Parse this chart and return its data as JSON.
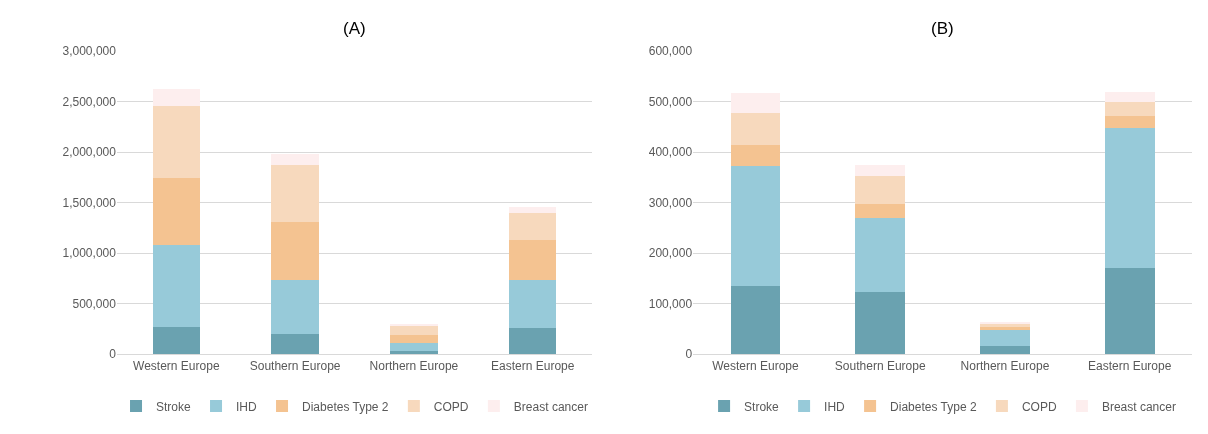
{
  "chart_data": [
    {
      "type": "bar",
      "title": "(A)",
      "stacked": true,
      "categories": [
        "Western Europe",
        "Southern Europe",
        "Northern Europe",
        "Eastern Europe"
      ],
      "series": [
        {
          "name": "Stroke",
          "color": "#6aa2b0",
          "values": [
            270000,
            200000,
            30000,
            260000
          ]
        },
        {
          "name": "IHD",
          "color": "#97cad9",
          "values": [
            810000,
            530000,
            80000,
            470000
          ]
        },
        {
          "name": "Diabetes Type 2",
          "color": "#f4c391",
          "values": [
            660000,
            580000,
            80000,
            400000
          ]
        },
        {
          "name": "COPD",
          "color": "#f7d9bd",
          "values": [
            720000,
            560000,
            90000,
            270000
          ]
        },
        {
          "name": "Breast cancer",
          "color": "#fdeeee",
          "values": [
            170000,
            110000,
            20000,
            60000
          ]
        }
      ],
      "ylim": [
        0,
        3000000
      ],
      "yticks": [
        0,
        {
          "value": 500000,
          "label": "500,000"
        },
        {
          "value": 1000000,
          "label": "1,000,000"
        },
        {
          "value": 1500000,
          "label": "1,500,000"
        },
        {
          "value": 2000000,
          "label": "2,000,000"
        },
        {
          "value": 2500000,
          "label": "2,500,000"
        },
        {
          "value": 3000000,
          "label": "3,000,000"
        }
      ],
      "grid": "y",
      "legend": "bottom"
    },
    {
      "type": "bar",
      "title": "(B)",
      "stacked": true,
      "categories": [
        "Western Europe",
        "Southern Europe",
        "Northern Europe",
        "Eastern Europe"
      ],
      "series": [
        {
          "name": "Stroke",
          "color": "#6aa2b0",
          "values": [
            135000,
            124000,
            16000,
            170000
          ]
        },
        {
          "name": "IHD",
          "color": "#97cad9",
          "values": [
            237000,
            145000,
            32000,
            278000
          ]
        },
        {
          "name": "Diabetes Type 2",
          "color": "#f4c391",
          "values": [
            43000,
            29000,
            5000,
            23000
          ]
        },
        {
          "name": "COPD",
          "color": "#f7d9bd",
          "values": [
            62000,
            54000,
            8000,
            28000
          ]
        },
        {
          "name": "Breast cancer",
          "color": "#fdeeee",
          "values": [
            40000,
            23000,
            2000,
            21000
          ]
        }
      ],
      "ylim": [
        0,
        600000
      ],
      "yticks": [
        0,
        {
          "value": 100000,
          "label": "100,000"
        },
        {
          "value": 200000,
          "label": "200,000"
        },
        {
          "value": 300000,
          "label": "300,000"
        },
        {
          "value": 400000,
          "label": "400,000"
        },
        {
          "value": 500000,
          "label": "500,000"
        },
        {
          "value": 600000,
          "label": "600,000"
        }
      ],
      "grid": "y",
      "legend": "bottom"
    }
  ]
}
